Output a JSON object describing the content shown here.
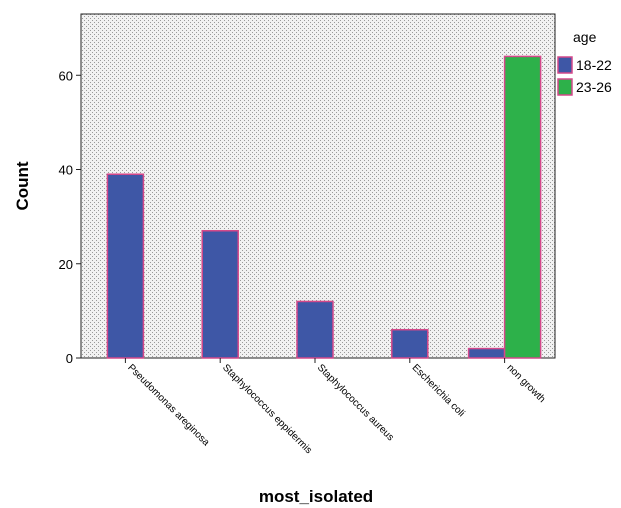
{
  "chart_data": {
    "type": "bar",
    "title": "",
    "xlabel": "most_isolated",
    "ylabel": "Count",
    "ylim": [
      0,
      73
    ],
    "yticks": [
      0,
      20,
      40,
      60
    ],
    "grid": false,
    "categories": [
      "Pseudomonas areginosa",
      "Staphylococcus eppidermis",
      "Staphylococcus aureus",
      "Escherichia coli",
      "non growth"
    ],
    "series": [
      {
        "name": "18-22",
        "color": "#3e57a6",
        "values": [
          39,
          27,
          12,
          6,
          2
        ]
      },
      {
        "name": "23-26",
        "color": "#2db14a",
        "values": [
          null,
          null,
          null,
          null,
          64
        ]
      }
    ],
    "legend": {
      "title": "age",
      "position": "right"
    },
    "bar_edge_color": "#d4488a",
    "plot_background": "dotted-gray"
  }
}
